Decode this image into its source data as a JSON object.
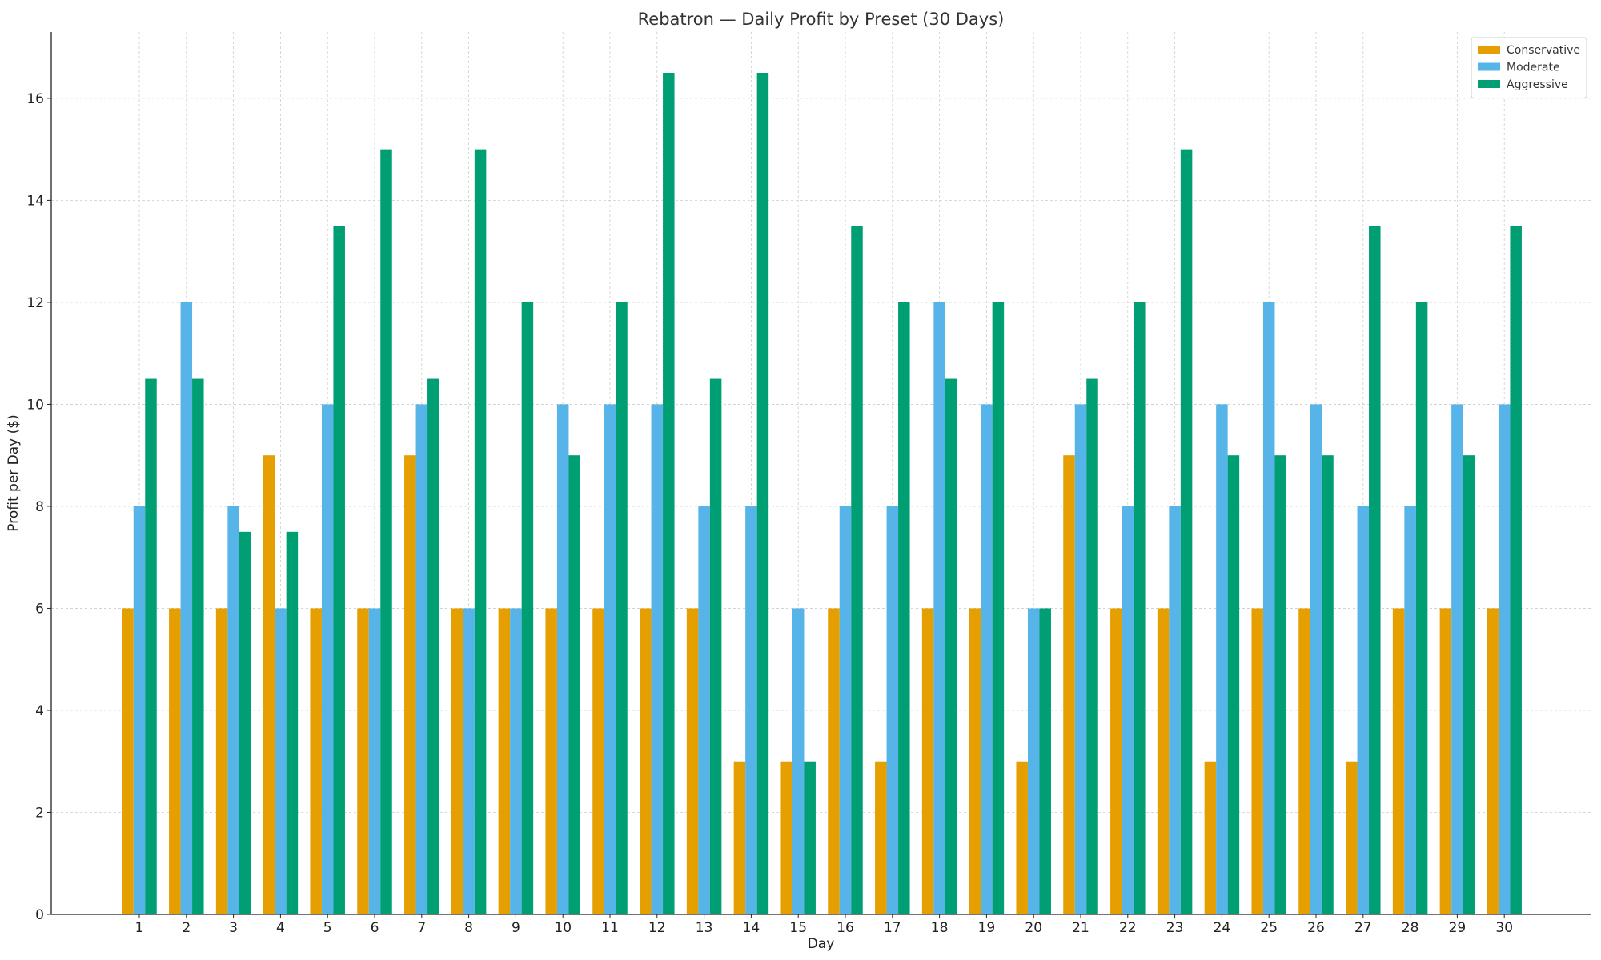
{
  "chart_data": {
    "type": "bar",
    "title": "Rebatron — Daily Profit by Preset (30 Days)",
    "xlabel": "Day",
    "ylabel": "Profit per Day ($)",
    "ylim": [
      0,
      17.3
    ],
    "yticks": [
      0,
      2,
      4,
      6,
      8,
      10,
      12,
      14,
      16
    ],
    "grid": true,
    "legend_position": "top-right",
    "categories": [
      "1",
      "2",
      "3",
      "4",
      "5",
      "6",
      "7",
      "8",
      "9",
      "10",
      "11",
      "12",
      "13",
      "14",
      "15",
      "16",
      "17",
      "18",
      "19",
      "20",
      "21",
      "22",
      "23",
      "24",
      "25",
      "26",
      "27",
      "28",
      "29",
      "30"
    ],
    "series": [
      {
        "name": "Conservative",
        "color": "#E69F00",
        "values": [
          6,
          6,
          6,
          9,
          6,
          6,
          9,
          6,
          6,
          6,
          6,
          6,
          6,
          3,
          3,
          6,
          3,
          6,
          6,
          3,
          9,
          6,
          6,
          3,
          6,
          6,
          3,
          6,
          6,
          6
        ]
      },
      {
        "name": "Moderate",
        "color": "#56B4E9",
        "values": [
          8,
          12,
          8,
          6,
          10,
          6,
          10,
          6,
          6,
          10,
          10,
          10,
          8,
          8,
          6,
          8,
          8,
          12,
          10,
          6,
          10,
          8,
          8,
          10,
          12,
          10,
          8,
          8,
          10,
          10
        ]
      },
      {
        "name": "Aggressive",
        "color": "#009E73",
        "values": [
          10.5,
          10.5,
          7.5,
          7.5,
          13.5,
          15,
          10.5,
          15,
          12,
          9,
          12,
          16.5,
          10.5,
          16.5,
          3,
          13.5,
          12,
          10.5,
          12,
          6,
          10.5,
          12,
          15,
          9,
          9,
          9,
          13.5,
          12,
          9,
          13.5
        ]
      }
    ]
  }
}
